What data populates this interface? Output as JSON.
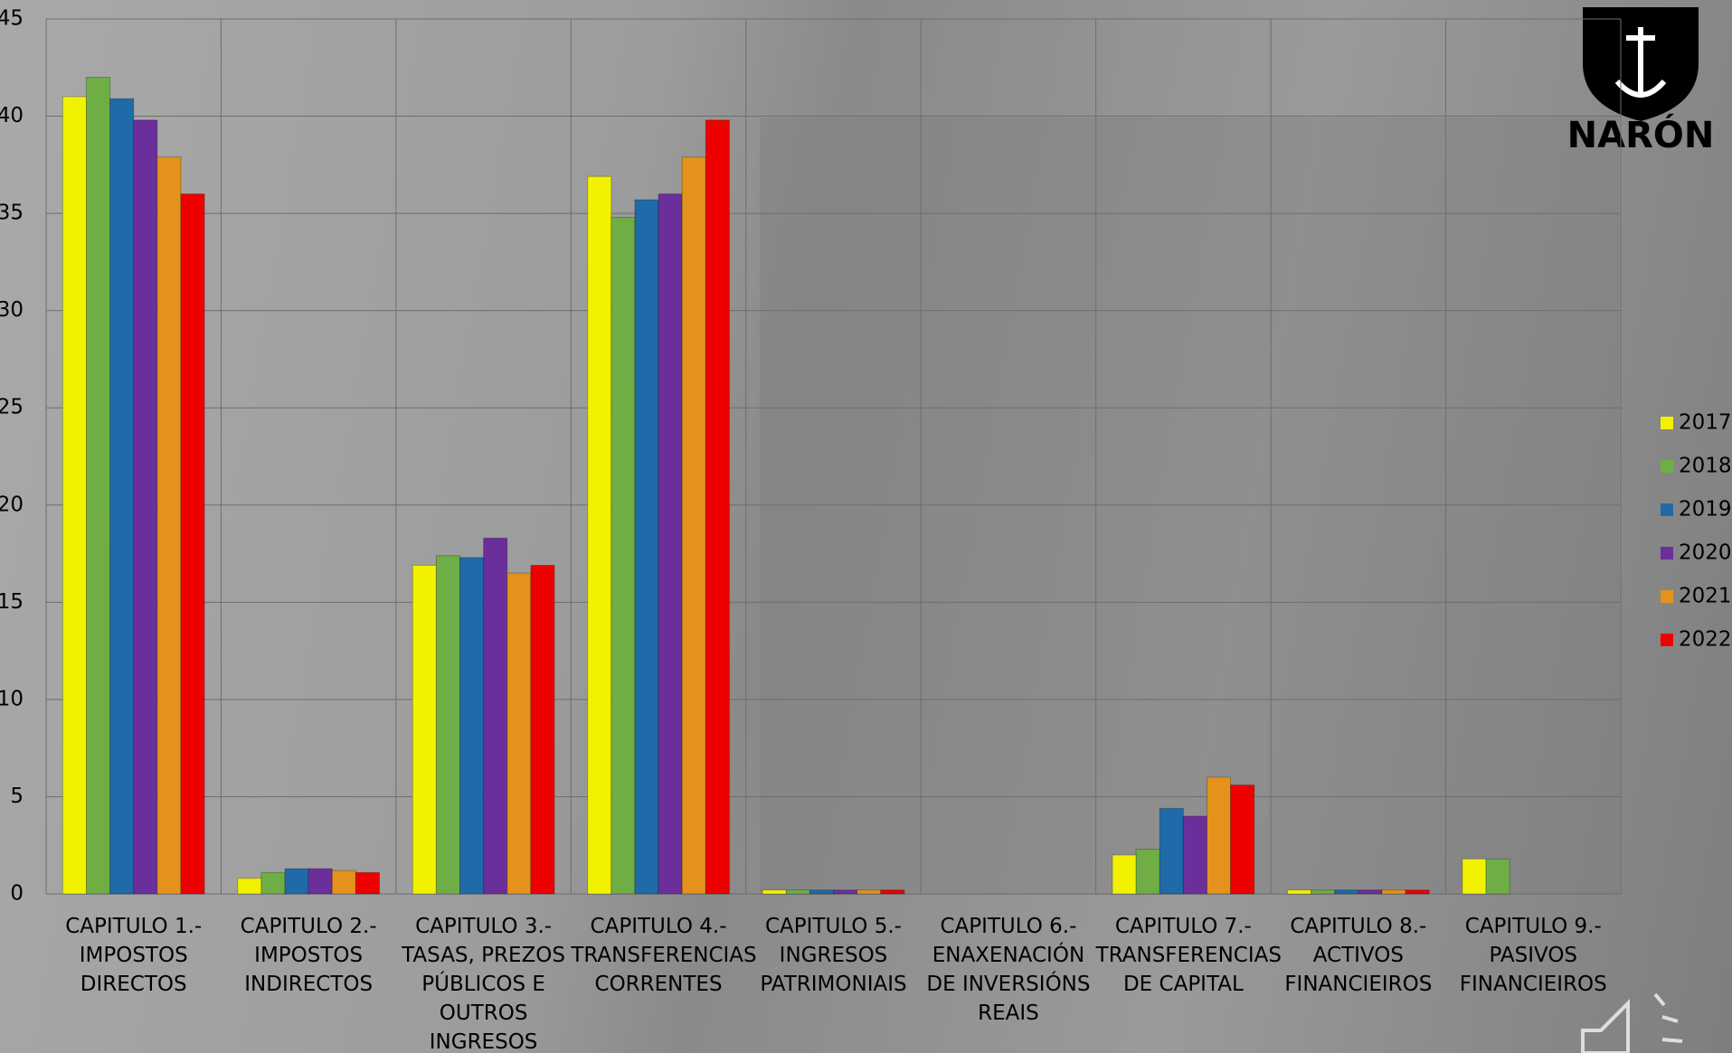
{
  "chart_data": {
    "type": "bar",
    "categories": [
      "CAPITULO 1.- IMPOSTOS DIRECTOS",
      "CAPITULO 2.- IMPOSTOS INDIRECTOS",
      "CAPITULO 3.- TASAS, PREZOS PÚBLICOS E OUTROS INGRESOS",
      "CAPITULO 4.- TRANSFERENCIAS CORRENTES",
      "CAPITULO 5.- INGRESOS PATRIMONIAIS",
      "CAPITULO 6.- ENAXENACIÓN DE INVERSIÓNS REAIS",
      "CAPITULO 7.- TRANSFERENCIAS DE CAPITAL",
      "CAPITULO 8.- ACTIVOS FINANCIEIROS",
      "CAPITULO 9.- PASIVOS FINANCIEIROS"
    ],
    "series": [
      {
        "name": "2017",
        "color": "#f2f200",
        "values": [
          41.0,
          0.8,
          16.9,
          36.9,
          0.2,
          null,
          2.0,
          0.2,
          1.8
        ]
      },
      {
        "name": "2018",
        "color": "#6fae45",
        "values": [
          42.0,
          1.1,
          17.4,
          34.8,
          0.2,
          null,
          2.3,
          0.2,
          1.8
        ]
      },
      {
        "name": "2019",
        "color": "#1f6aa8",
        "values": [
          40.9,
          1.3,
          17.3,
          35.7,
          0.2,
          null,
          4.4,
          0.2,
          null
        ]
      },
      {
        "name": "2020",
        "color": "#6b2f9c",
        "values": [
          39.8,
          1.3,
          18.3,
          36.0,
          0.2,
          null,
          4.0,
          0.2,
          null
        ]
      },
      {
        "name": "2021",
        "color": "#e3921c",
        "values": [
          37.9,
          1.2,
          16.5,
          37.9,
          0.2,
          null,
          6.0,
          0.2,
          null
        ]
      },
      {
        "name": "2022",
        "color": "#ee0000",
        "values": [
          36.0,
          1.1,
          16.9,
          39.8,
          0.2,
          null,
          5.6,
          0.2,
          null
        ]
      }
    ],
    "ylim": [
      0,
      45
    ],
    "yticks": [
      0,
      5,
      10,
      15,
      20,
      25,
      30,
      35,
      40,
      45
    ],
    "grid": true,
    "legend": "right"
  },
  "logo": {
    "text": "NARÓN"
  }
}
